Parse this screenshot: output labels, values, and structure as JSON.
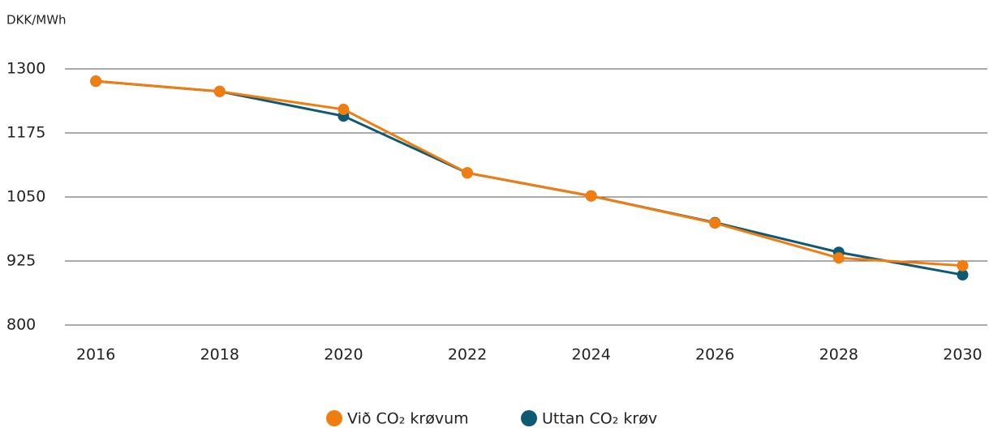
{
  "chart_data": {
    "type": "line",
    "y_label": "DKK/MWh",
    "x": [
      2016,
      2018,
      2020,
      2022,
      2024,
      2026,
      2028,
      2030
    ],
    "series": [
      {
        "name": "Við CO₂ krøvum",
        "color": "#f07d10",
        "values": [
          1276,
          1256,
          1221,
          1097,
          1052,
          999,
          931,
          916
        ]
      },
      {
        "name": "Uttan CO₂ krøv",
        "color": "#0e5a73",
        "values": [
          1276,
          1256,
          1208,
          1097,
          1052,
          1000,
          942,
          898
        ]
      }
    ],
    "xlim": [
      2015.5,
      2030.4
    ],
    "xticks": [
      2016,
      2018,
      2020,
      2022,
      2024,
      2026,
      2028,
      2030
    ],
    "ylim": [
      800,
      1300
    ],
    "yticks": [
      800,
      925,
      1050,
      1175,
      1300
    ],
    "grid": true,
    "legend": "bottom"
  }
}
